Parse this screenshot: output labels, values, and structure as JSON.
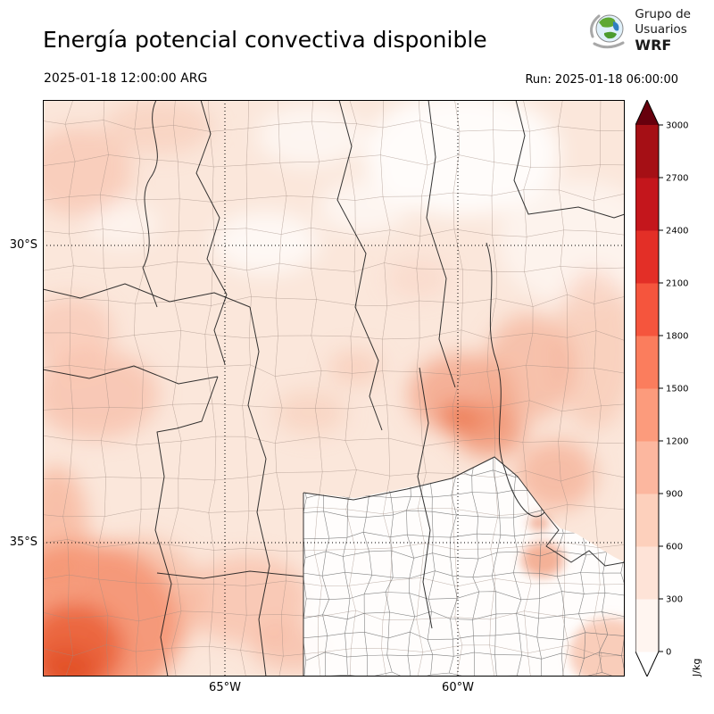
{
  "header": {
    "title": "Energía potencial convectiva disponible",
    "valid_time": "2025-01-18 12:00:00 ARG",
    "run_label": "Run: 2025-01-18 06:00:00",
    "logo": {
      "line1": "Grupo de",
      "line2": "Usuarios",
      "line3": "WRF"
    }
  },
  "map": {
    "lat_labels": [
      "30°S",
      "35°S"
    ],
    "lon_labels": [
      "65°W",
      "60°W"
    ]
  },
  "colorbar": {
    "unit": "J/kg",
    "min": 0,
    "max": 3000,
    "ticks": [
      0,
      300,
      600,
      900,
      1200,
      1500,
      1800,
      2100,
      2400,
      2700,
      3000
    ],
    "segment_colors": [
      "#fff5f0",
      "#fee3d7",
      "#fdd0bc",
      "#fcb79f",
      "#fc9b7c",
      "#fb7d5d",
      "#f5553d",
      "#e32f27",
      "#c4161c",
      "#a50f15"
    ],
    "over_color": "#67000d",
    "under_color": "#ffffff"
  },
  "chart_data": {
    "type": "heatmap",
    "title": "Energía potencial convectiva disponible",
    "variable": "CAPE (convective available potential energy)",
    "unit": "J/kg",
    "colorbar_ticks": [
      0,
      300,
      600,
      900,
      1200,
      1500,
      1800,
      2100,
      2400,
      2700,
      3000
    ],
    "value_range_shown": [
      0,
      3000
    ],
    "lat_gridlines": [
      "30°S",
      "35°S"
    ],
    "lon_gridlines": [
      "65°W",
      "60°W"
    ],
    "valid_time": "2025-01-18 12:00:00 ARG",
    "run_time": "2025-01-18 06:00:00",
    "summary": "WRF model CAPE over central-northern Argentina; field mostly 0-600 J/kg (pale peach), white minima over NE sector and Buenos Aires province, maxima ~900-1500 J/kg in SW corner (Mendoza) and salmon patches ~600-1200 J/kg over the central-east (Córdoba/Santa Fe) region"
  }
}
